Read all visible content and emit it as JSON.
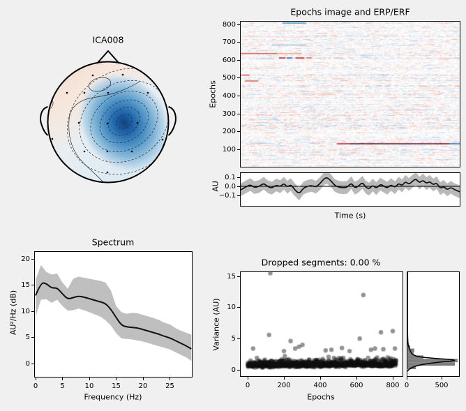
{
  "window": {
    "background": "#f0f0f0",
    "axes_background": "#ffffff"
  },
  "chart_data": {
    "topomap": {
      "type": "heatmap",
      "title": "ICA008",
      "colormap": "RdBu_r",
      "description": "EEG ICA component topography: strong focal negative (dark blue) patch over right centro-parietal sensors surrounded by dashed negative contour lines; weak positive (pale orange) field over frontal/left area with a small closed solid contour near the frontal midline; head outline with nose and ears; electrode positions drawn as small black dots."
    },
    "epochs_image": {
      "type": "heatmap",
      "title": "Epochs image and ERP/ERF",
      "ylabel": "Epochs",
      "xlabel": "",
      "yticks": [
        100,
        200,
        300,
        400,
        500,
        600,
        700,
        800
      ],
      "ylim": [
        1,
        820
      ],
      "colormap": "RdBu_r",
      "appearance": "near-white raster of faint horizontal red/blue noise streaks, one epoch per row",
      "notable_rows": [
        {
          "epoch": 130,
          "segments": [
            [
              0.44,
              0.5,
              "#b2182b"
            ],
            [
              0.5,
              0.955,
              "#67001f"
            ],
            [
              0.955,
              1.0,
              "#2166ac"
            ]
          ]
        },
        {
          "epoch": 640,
          "segments": [
            [
              0.0,
              0.17,
              "#d6604d"
            ],
            [
              0.17,
              0.28,
              "#f4a582"
            ]
          ]
        },
        {
          "epoch": 615,
          "segments": [
            [
              0.175,
              0.205,
              "#b2182b"
            ],
            [
              0.21,
              0.235,
              "#2166ac"
            ],
            [
              0.25,
              0.29,
              "#b2182b"
            ],
            [
              0.3,
              0.325,
              "#d6604d"
            ]
          ]
        },
        {
          "epoch": 812,
          "segments": [
            [
              0.19,
              0.3,
              "#4393c3"
            ]
          ]
        },
        {
          "epoch": 688,
          "segments": [
            [
              0.14,
              0.3,
              "#92c5de"
            ]
          ]
        },
        {
          "epoch": 485,
          "segments": [
            [
              0.02,
              0.08,
              "#d6604d"
            ]
          ]
        },
        {
          "epoch": 518,
          "segments": [
            [
              0.0,
              0.04,
              "#d6604d"
            ]
          ]
        }
      ]
    },
    "erp": {
      "type": "line",
      "ylabel": "AU",
      "xlabel": "Time (s)",
      "yticks": [
        0.1,
        0.0,
        -0.1
      ],
      "ytick_labels": [
        "0.1",
        "0.0",
        "−0.1"
      ],
      "zero_line": 0,
      "band_halfwidth": 0.07,
      "points": [
        [
          0.0,
          -0.04
        ],
        [
          0.025,
          -0.005
        ],
        [
          0.044,
          0.02
        ],
        [
          0.063,
          -0.015
        ],
        [
          0.086,
          0.0
        ],
        [
          0.105,
          0.035
        ],
        [
          0.124,
          -0.005
        ],
        [
          0.143,
          -0.02
        ],
        [
          0.162,
          0.015
        ],
        [
          0.181,
          -0.005
        ],
        [
          0.197,
          0.035
        ],
        [
          0.213,
          -0.01
        ],
        [
          0.229,
          0.02
        ],
        [
          0.244,
          -0.03
        ],
        [
          0.267,
          -0.085
        ],
        [
          0.286,
          -0.02
        ],
        [
          0.305,
          0.0
        ],
        [
          0.324,
          0.01
        ],
        [
          0.343,
          -0.01
        ],
        [
          0.362,
          0.03
        ],
        [
          0.381,
          0.085
        ],
        [
          0.394,
          0.098
        ],
        [
          0.413,
          0.06
        ],
        [
          0.429,
          0.01
        ],
        [
          0.448,
          -0.01
        ],
        [
          0.467,
          -0.015
        ],
        [
          0.486,
          -0.012
        ],
        [
          0.505,
          0.04
        ],
        [
          0.521,
          -0.02
        ],
        [
          0.537,
          0.0
        ],
        [
          0.556,
          0.045
        ],
        [
          0.571,
          -0.01
        ],
        [
          0.587,
          -0.03
        ],
        [
          0.603,
          0.015
        ],
        [
          0.619,
          -0.025
        ],
        [
          0.638,
          0.025
        ],
        [
          0.654,
          0.0
        ],
        [
          0.67,
          -0.02
        ],
        [
          0.686,
          0.02
        ],
        [
          0.705,
          -0.015
        ],
        [
          0.721,
          0.035
        ],
        [
          0.737,
          0.005
        ],
        [
          0.752,
          0.055
        ],
        [
          0.768,
          0.02
        ],
        [
          0.784,
          0.055
        ],
        [
          0.8,
          0.085
        ],
        [
          0.816,
          0.035
        ],
        [
          0.832,
          0.07
        ],
        [
          0.848,
          0.03
        ],
        [
          0.863,
          0.055
        ],
        [
          0.879,
          0.015
        ],
        [
          0.895,
          0.04
        ],
        [
          0.911,
          -0.025
        ],
        [
          0.927,
          0.0
        ],
        [
          0.943,
          -0.04
        ],
        [
          0.959,
          -0.01
        ],
        [
          0.975,
          -0.035
        ],
        [
          1.0,
          -0.06
        ]
      ]
    },
    "spectrum": {
      "type": "line",
      "title": "Spectrum",
      "xlabel": "Frequency (Hz)",
      "ylabel": "AU²/Hz (dB)",
      "xticks": [
        0,
        5,
        10,
        15,
        20,
        25
      ],
      "yticks": [
        0,
        5,
        10,
        15,
        20
      ],
      "xlim": [
        0,
        29.3
      ],
      "freqs": [
        0,
        1,
        2,
        3,
        4,
        5,
        6,
        7,
        8,
        9,
        10,
        11,
        12,
        13,
        14,
        15,
        16,
        17,
        18,
        19,
        20,
        21,
        22,
        23,
        24,
        25,
        26,
        27,
        28,
        29
      ],
      "mean": [
        13.0,
        15.5,
        15.3,
        14.4,
        14.5,
        13.3,
        12.3,
        12.6,
        12.9,
        12.7,
        12.4,
        12.1,
        11.8,
        11.5,
        10.4,
        8.8,
        7.3,
        7.0,
        6.9,
        6.8,
        6.5,
        6.2,
        5.9,
        5.6,
        5.2,
        4.9,
        4.4,
        3.9,
        3.4,
        2.8
      ],
      "upper": [
        16.0,
        18.8,
        17.5,
        17.0,
        17.2,
        15.5,
        14.3,
        16.2,
        16.6,
        16.4,
        16.2,
        16.0,
        15.8,
        15.5,
        14.0,
        11.0,
        9.8,
        9.5,
        9.7,
        9.6,
        9.3,
        9.0,
        8.7,
        8.3,
        7.8,
        7.5,
        6.8,
        6.3,
        5.9,
        5.5
      ],
      "lower": [
        9.0,
        12.2,
        12.3,
        11.6,
        12.2,
        11.0,
        10.1,
        10.2,
        10.5,
        10.2,
        9.8,
        9.4,
        9.0,
        8.3,
        7.3,
        5.8,
        4.8,
        4.7,
        4.6,
        4.4,
        4.2,
        3.9,
        3.6,
        3.3,
        3.0,
        2.7,
        2.2,
        1.7,
        1.2,
        0.5
      ]
    },
    "variance_scatter": {
      "type": "scatter",
      "title": "Dropped segments: 0.00 %",
      "xlabel": "Epochs",
      "ylabel": "Variance (AU)",
      "xticks": [
        0,
        200,
        400,
        600,
        800
      ],
      "yticks": [
        0,
        5,
        10,
        15
      ],
      "n_epochs": 820,
      "cloud": {
        "typical_range": [
          0.2,
          1.8
        ],
        "max": 2.6
      },
      "outliers": [
        [
          30,
          3.3
        ],
        [
          118,
          5.5
        ],
        [
          125,
          15.4
        ],
        [
          200,
          2.9
        ],
        [
          237,
          4.5
        ],
        [
          262,
          3.3
        ],
        [
          283,
          3.6
        ],
        [
          302,
          3.9
        ],
        [
          430,
          3.0
        ],
        [
          462,
          3.1
        ],
        [
          520,
          3.4
        ],
        [
          562,
          2.9
        ],
        [
          618,
          4.9
        ],
        [
          638,
          11.9
        ],
        [
          680,
          3.1
        ],
        [
          702,
          3.3
        ],
        [
          735,
          5.9
        ],
        [
          748,
          3.2
        ],
        [
          800,
          6.1
        ],
        [
          812,
          3.3
        ]
      ]
    },
    "variance_hist": {
      "type": "bar",
      "orientation": "horizontal",
      "xticks": [
        0,
        500
      ],
      "bars": [
        [
          0.0,
          0.55,
          120
        ],
        [
          0.55,
          1.1,
          680
        ],
        [
          1.1,
          1.65,
          720
        ],
        [
          1.65,
          2.2,
          230
        ],
        [
          2.2,
          2.75,
          90
        ],
        [
          2.75,
          3.3,
          100
        ],
        [
          3.3,
          3.85,
          40
        ],
        [
          3.85,
          4.4,
          12
        ],
        [
          4.4,
          5.0,
          8
        ],
        [
          5.4,
          6.2,
          6
        ]
      ],
      "kde": [
        [
          -0.35,
          2
        ],
        [
          0,
          25
        ],
        [
          0.4,
          90
        ],
        [
          0.8,
          230
        ],
        [
          1.1,
          430
        ],
        [
          1.3,
          640
        ],
        [
          1.45,
          695
        ],
        [
          1.6,
          560
        ],
        [
          1.8,
          300
        ],
        [
          2.0,
          150
        ],
        [
          2.3,
          80
        ],
        [
          2.6,
          55
        ],
        [
          3.0,
          40
        ],
        [
          3.4,
          25
        ],
        [
          3.8,
          12
        ],
        [
          4.5,
          6
        ],
        [
          5.5,
          3
        ],
        [
          7,
          2
        ],
        [
          10,
          1
        ],
        [
          15.8,
          1
        ]
      ]
    }
  }
}
